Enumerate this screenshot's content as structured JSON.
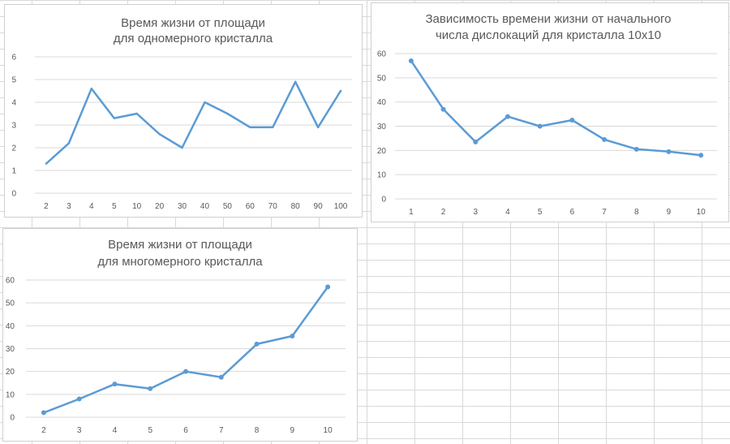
{
  "chart_data": [
    {
      "type": "line",
      "title": [
        "Время жизни от площади",
        "для одномерного кристалла"
      ],
      "categories": [
        "2",
        "3",
        "4",
        "5",
        "10",
        "20",
        "30",
        "40",
        "50",
        "60",
        "70",
        "80",
        "90",
        "100"
      ],
      "series": [
        {
          "values": [
            1.3,
            2.2,
            4.6,
            3.3,
            3.5,
            2.6,
            2.0,
            4.0,
            3.5,
            2.9,
            2.9,
            4.9,
            2.9,
            4.5
          ],
          "markers": false
        }
      ],
      "yticks": [
        0,
        1,
        2,
        3,
        4,
        5,
        6
      ],
      "ylim": [
        0,
        6
      ],
      "grid": true,
      "line_color": "#5b9bd5"
    },
    {
      "type": "line",
      "title": [
        "Зависимость времени жизни от начального",
        "числа дислокаций для кристалла 10х10"
      ],
      "categories": [
        "1",
        "2",
        "3",
        "4",
        "5",
        "6",
        "7",
        "8",
        "9",
        "10"
      ],
      "series": [
        {
          "values": [
            57,
            37,
            23.5,
            34,
            30,
            32.5,
            24.5,
            20.5,
            19.5,
            18
          ],
          "markers": true
        }
      ],
      "yticks": [
        0,
        10,
        20,
        30,
        40,
        50,
        60
      ],
      "ylim": [
        0,
        60
      ],
      "grid": true,
      "line_color": "#5b9bd5"
    },
    {
      "type": "line",
      "title": [
        "Время жизни от площади",
        "для многомерного кристалла"
      ],
      "categories": [
        "2",
        "3",
        "4",
        "5",
        "6",
        "7",
        "8",
        "9",
        "10"
      ],
      "series": [
        {
          "values": [
            2,
            8,
            14.5,
            12.5,
            20,
            17.5,
            32,
            35.5,
            57
          ],
          "markers": true
        }
      ],
      "yticks": [
        0,
        10,
        20,
        30,
        40,
        50,
        60
      ],
      "ylim": [
        0,
        60
      ],
      "grid": true,
      "line_color": "#5b9bd5"
    }
  ]
}
